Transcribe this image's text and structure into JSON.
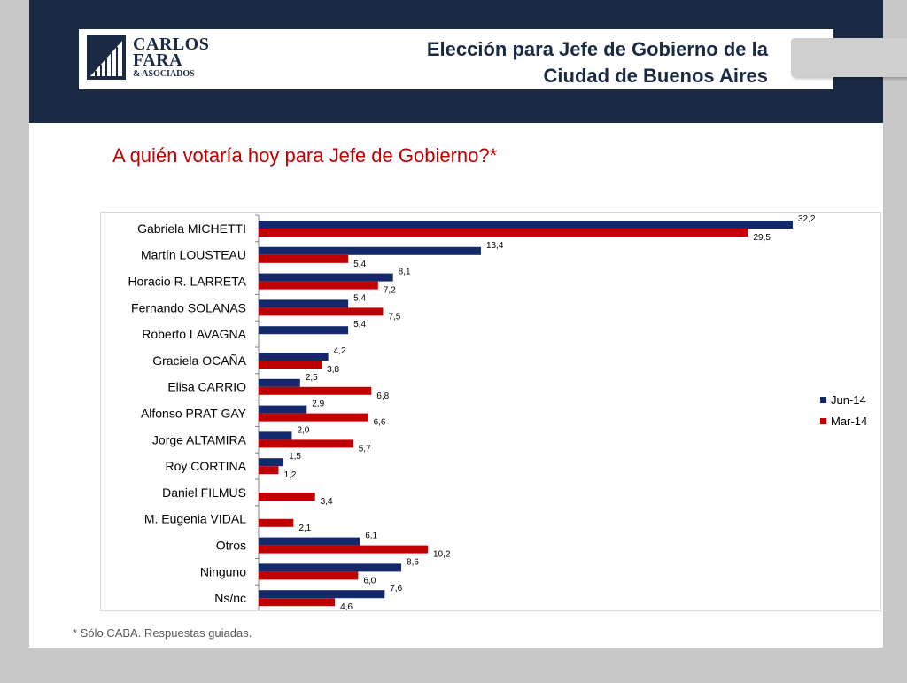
{
  "header": {
    "logo": {
      "line1": "CARLOS",
      "line2": "FARA",
      "line3": "& ASOCIADOS"
    },
    "title_line1": "Elección para Jefe de Gobierno de la",
    "title_line2": "Ciudad de Buenos Aires"
  },
  "subtitle": "A quién votaría hoy para Jefe de Gobierno?*",
  "footnote": "* Sólo CABA. Respuestas guiadas.",
  "colors": {
    "navy": "#1b2a44",
    "series_jun": "#13296b",
    "series_mar": "#c00000"
  },
  "chart_data": {
    "type": "bar",
    "orientation": "horizontal",
    "categories": [
      "Gabriela MICHETTI",
      "Martín LOUSTEAU",
      "Horacio R. LARRETA",
      "Fernando SOLANAS",
      "Roberto LAVAGNA",
      "Graciela OCAÑA",
      "Elisa CARRIO",
      "Alfonso PRAT GAY",
      "Jorge ALTAMIRA",
      "Roy CORTINA",
      "Daniel FILMUS",
      "M. Eugenia VIDAL",
      "Otros",
      "Ninguno",
      "Ns/nc"
    ],
    "series": [
      {
        "name": "Jun-14",
        "color": "#13296b",
        "values": [
          32.2,
          13.4,
          8.1,
          5.4,
          5.4,
          4.2,
          2.5,
          2.9,
          2.0,
          1.5,
          null,
          null,
          6.1,
          8.6,
          7.6
        ],
        "labels": [
          "32,2",
          "13,4",
          "8,1",
          "5,4",
          "5,4",
          "4,2",
          "2,5",
          "2,9",
          "2,0",
          "1,5",
          "",
          "",
          "6,1",
          "8,6",
          "7,6"
        ]
      },
      {
        "name": "Mar-14",
        "color": "#c00000",
        "values": [
          29.5,
          5.4,
          7.2,
          7.5,
          null,
          3.8,
          6.8,
          6.6,
          5.7,
          1.2,
          3.4,
          2.1,
          10.2,
          6.0,
          4.6
        ],
        "labels": [
          "29,5",
          "5,4",
          "7,2",
          "7,5",
          "",
          "3,8",
          "6,8",
          "6,6",
          "5,7",
          "1,2",
          "3,4",
          "2,1",
          "10,2",
          "6,0",
          "4,6"
        ]
      }
    ],
    "legend": "right",
    "grid": false
  }
}
